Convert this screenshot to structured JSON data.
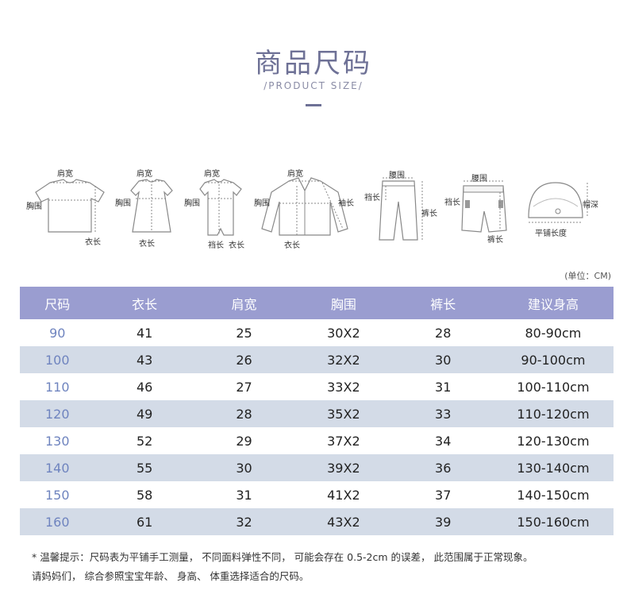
{
  "header": {
    "title": "商品尺码",
    "subtitle": "/PRODUCT SIZE/"
  },
  "diagram_labels": {
    "tshirt": {
      "shoulder": "肩宽",
      "chest": "胸围",
      "length": "衣长"
    },
    "dress": {
      "shoulder": "肩宽",
      "chest": "胸围",
      "length": "衣长"
    },
    "romper": {
      "shoulder": "肩宽",
      "chest": "胸围",
      "crotch": "裆长",
      "length": "衣长"
    },
    "jacket": {
      "shoulder": "肩宽",
      "chest": "胸围",
      "sleeve": "袖长",
      "length": "衣长"
    },
    "pants": {
      "waist": "腰围",
      "crotch": "裆长",
      "pants_length": "裤长"
    },
    "shorts": {
      "waist": "腰围",
      "crotch": "裆长",
      "pants_length": "裤长"
    },
    "hat": {
      "depth": "帽深",
      "flat_length": "平铺长度"
    }
  },
  "unit_note": "(单位：CM)",
  "table": {
    "headers": [
      "尺码",
      "衣长",
      "肩宽",
      "胸围",
      "裤长",
      "建议身高"
    ],
    "rows": [
      [
        "90",
        "41",
        "25",
        "30X2",
        "28",
        "80-90cm"
      ],
      [
        "100",
        "43",
        "26",
        "32X2",
        "30",
        "90-100cm"
      ],
      [
        "110",
        "46",
        "27",
        "33X2",
        "31",
        "100-110cm"
      ],
      [
        "120",
        "49",
        "28",
        "35X2",
        "33",
        "110-120cm"
      ],
      [
        "130",
        "52",
        "29",
        "37X2",
        "34",
        "120-130cm"
      ],
      [
        "140",
        "55",
        "30",
        "39X2",
        "36",
        "130-140cm"
      ],
      [
        "150",
        "58",
        "31",
        "41X2",
        "37",
        "140-150cm"
      ],
      [
        "160",
        "61",
        "32",
        "43X2",
        "39",
        "150-160cm"
      ]
    ]
  },
  "notes": {
    "line1": "* 温馨提示：尺码表为平铺手工测量， 不同面料弹性不同， 可能会存在 0.5-2cm 的误差， 此范围属于正常现象。",
    "line2": "请妈妈们， 综合参照宝宝年龄、 身高、 体重选择适合的尺码。"
  },
  "colors": {
    "title": "#6e7196",
    "table_header": "#9a9dd0",
    "alt_row": "#d3dbe7",
    "size_text": "#6f84bf"
  }
}
